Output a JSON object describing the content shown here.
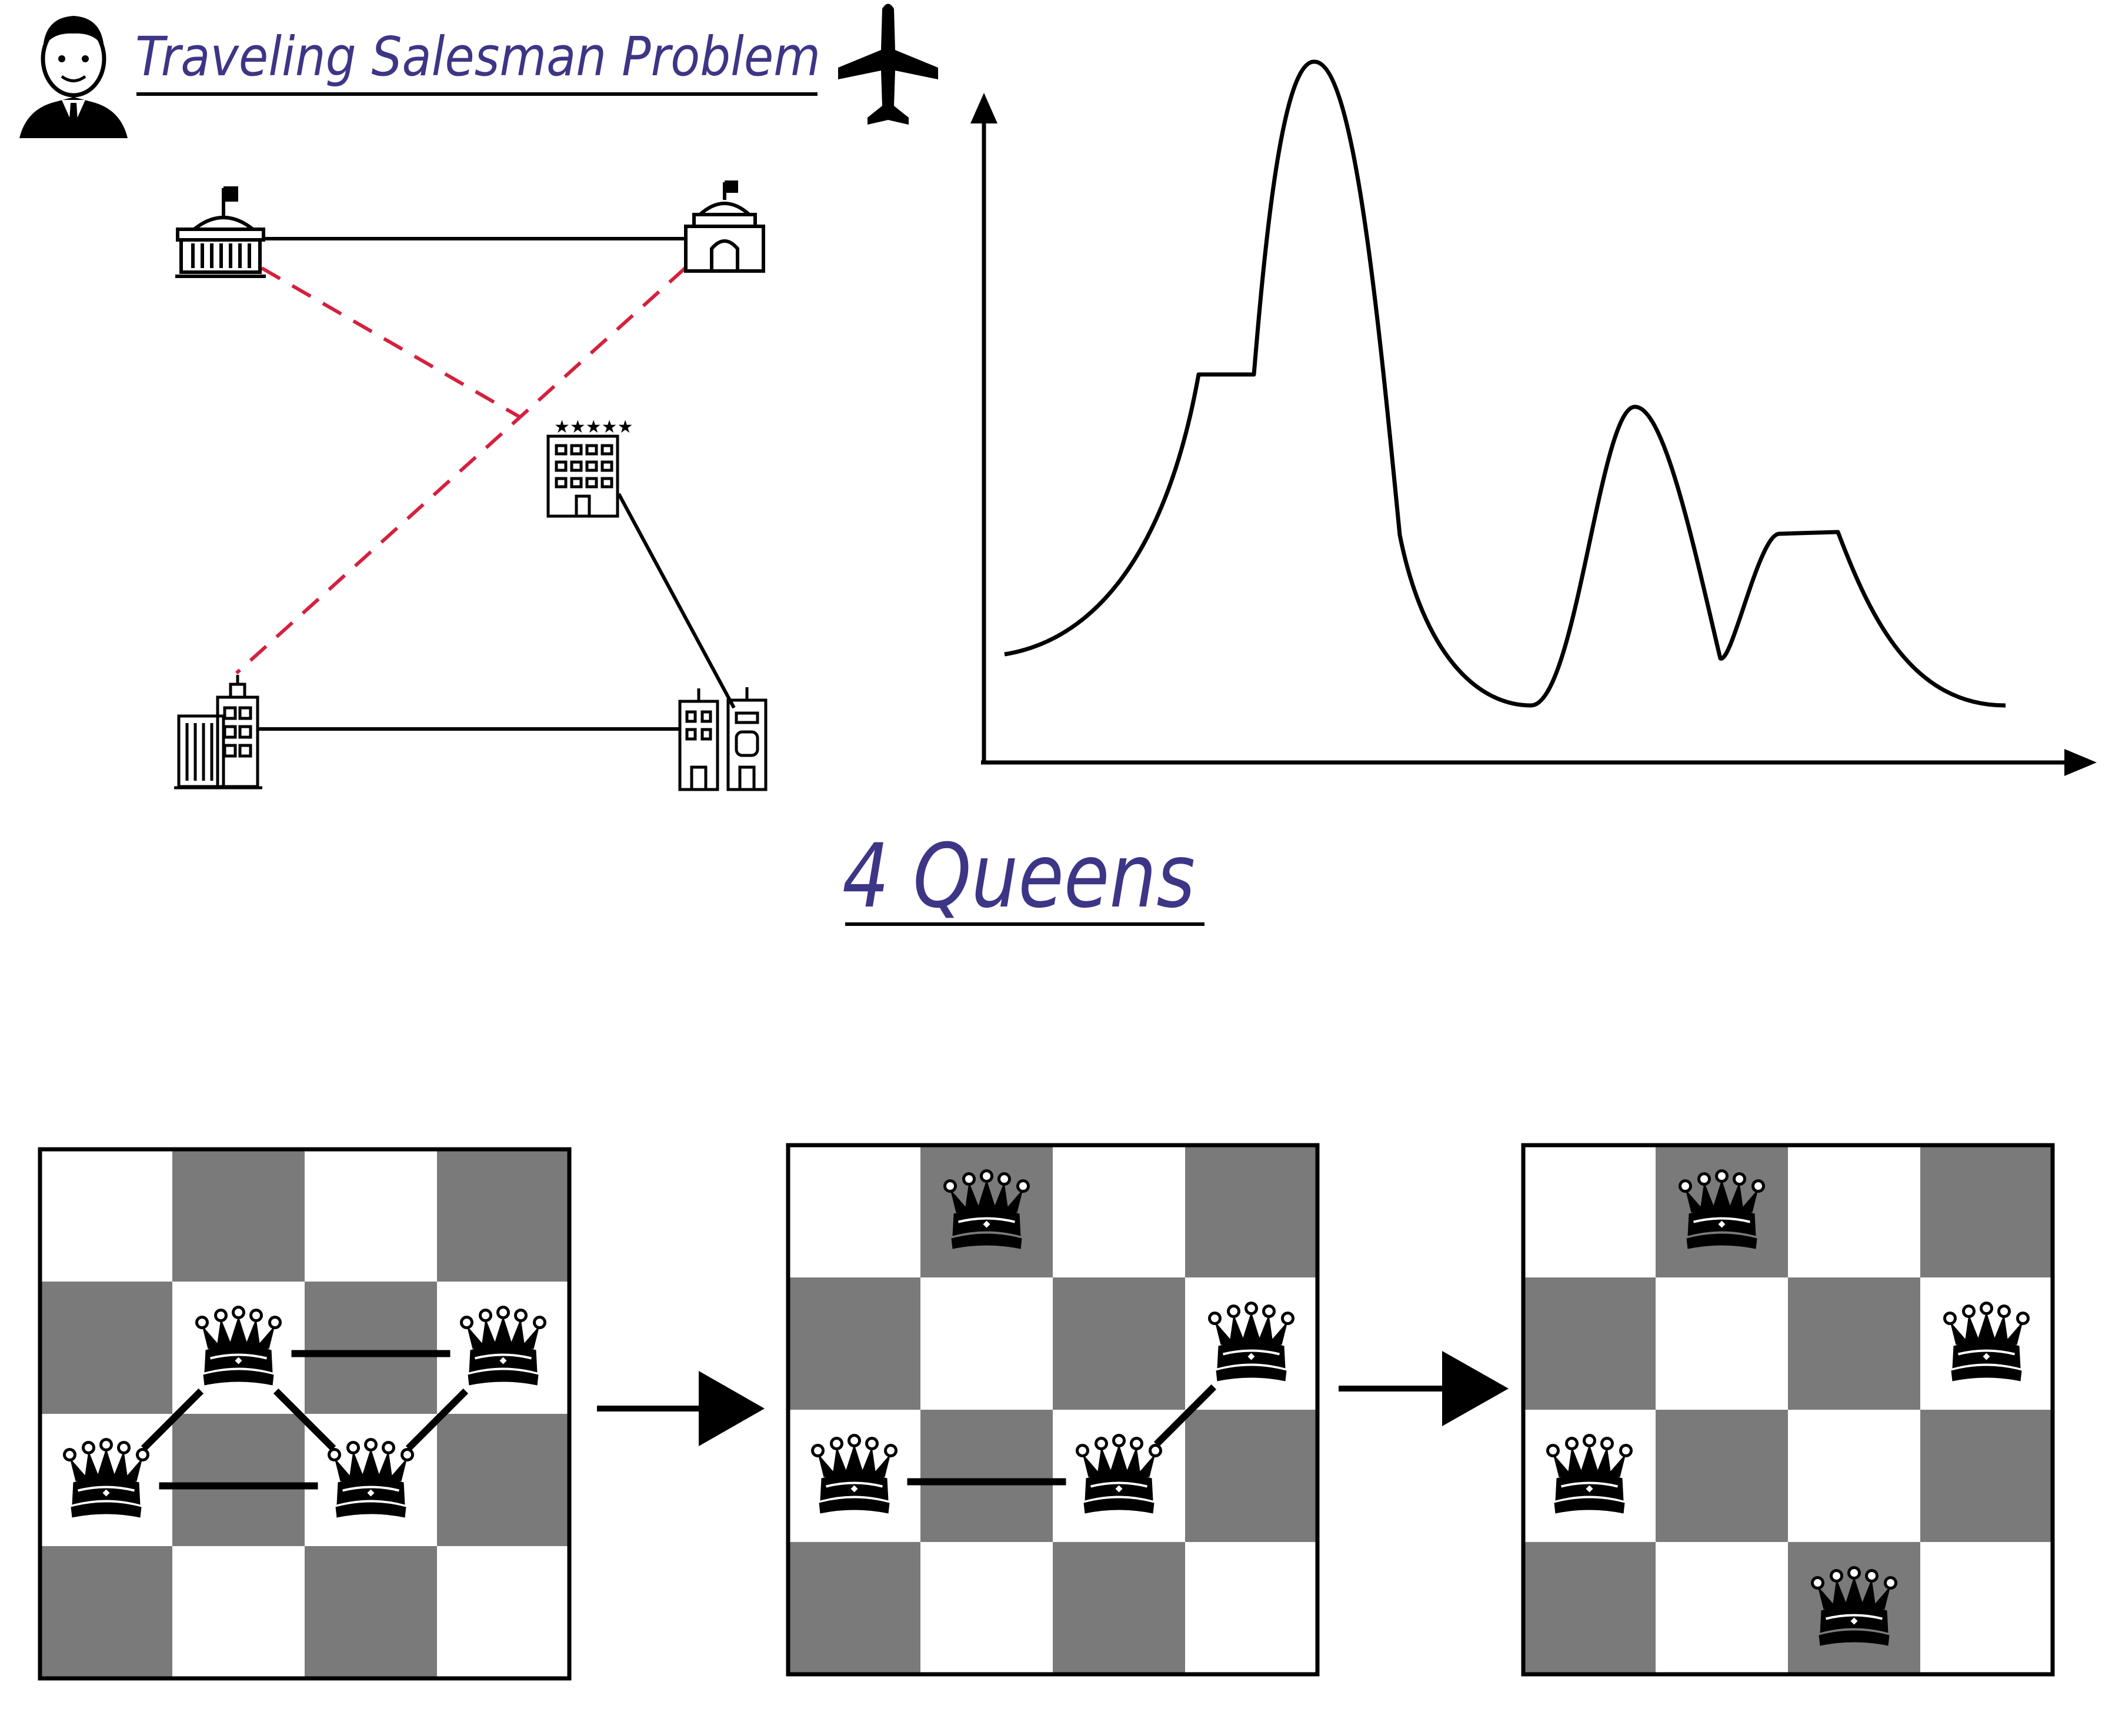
{
  "tsp": {
    "title": "Traveling Salesman Problem",
    "icons": {
      "salesman": "businessman-icon",
      "plane": "airplane-icon",
      "cities": [
        "capitol-building-icon",
        "domed-building-icon",
        "hotel-building-icon",
        "office-buildings-icon",
        "city-apartments-icon"
      ]
    }
  },
  "landscape": {
    "description_type": "line",
    "has_axes": true
  },
  "queens": {
    "title": "4 Queens",
    "board_size": 4,
    "boards": [
      {
        "queens": [
          [
            2,
            0
          ],
          [
            1,
            1
          ],
          [
            2,
            2
          ],
          [
            1,
            3
          ]
        ],
        "conflicts": [
          [
            [
              2,
              0
            ],
            [
              1,
              1
            ]
          ],
          [
            [
              2,
              0
            ],
            [
              2,
              2
            ]
          ],
          [
            [
              1,
              1
            ],
            [
              1,
              3
            ]
          ],
          [
            [
              1,
              1
            ],
            [
              2,
              2
            ]
          ],
          [
            [
              2,
              2
            ],
            [
              1,
              3
            ]
          ]
        ]
      },
      {
        "queens": [
          [
            0,
            1
          ],
          [
            1,
            3
          ],
          [
            2,
            0
          ],
          [
            2,
            2
          ]
        ],
        "conflicts": [
          [
            [
              2,
              0
            ],
            [
              2,
              2
            ]
          ],
          [
            [
              2,
              2
            ],
            [
              1,
              3
            ]
          ]
        ]
      },
      {
        "queens": [
          [
            0,
            1
          ],
          [
            1,
            3
          ],
          [
            2,
            0
          ],
          [
            3,
            2
          ]
        ],
        "conflicts": []
      }
    ]
  },
  "colors": {
    "ink": "#000000",
    "accent_text": "#3d3585",
    "route_dashed": "#d4213d",
    "dark_square": "#7a7a7a",
    "light_square": "#ffffff"
  }
}
